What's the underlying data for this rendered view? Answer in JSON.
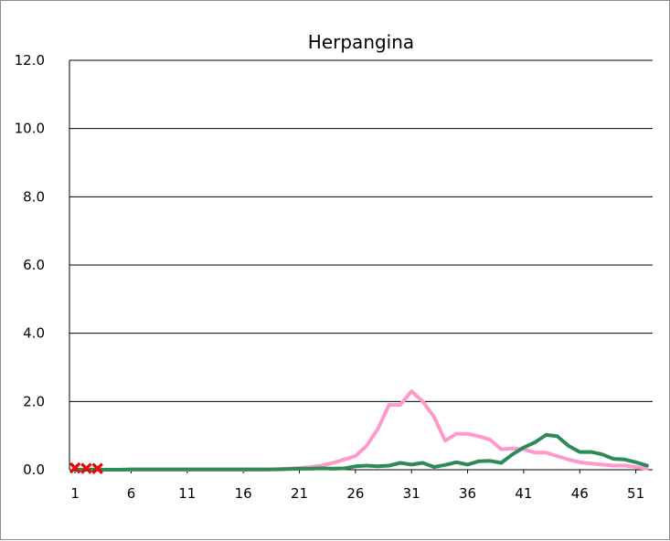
{
  "chart_data": {
    "type": "line",
    "title": "Herpangina",
    "xlabel": "",
    "ylabel": "",
    "ylim": [
      0,
      12
    ],
    "yticks": [
      "0.0",
      "2.0",
      "4.0",
      "6.0",
      "8.0",
      "10.0",
      "12.0"
    ],
    "yticks_values": [
      0,
      2,
      4,
      6,
      8,
      10,
      12
    ],
    "xlim": [
      1,
      53
    ],
    "xticks": [
      "1",
      "6",
      "11",
      "16",
      "21",
      "26",
      "31",
      "36",
      "41",
      "46",
      "51"
    ],
    "xticks_values": [
      1,
      6,
      11,
      16,
      21,
      26,
      31,
      36,
      41,
      46,
      51
    ],
    "grid": "horizontal",
    "legend": "none",
    "series": [
      {
        "color": "#ff99cc",
        "style": "line",
        "x": [
          1,
          2,
          3,
          4,
          5,
          6,
          7,
          8,
          9,
          10,
          11,
          12,
          13,
          14,
          15,
          16,
          17,
          18,
          19,
          20,
          21,
          22,
          23,
          24,
          25,
          26,
          27,
          28,
          29,
          30,
          31,
          32,
          33,
          34,
          35,
          36,
          37,
          38,
          39,
          40,
          41,
          42,
          43,
          44,
          45,
          46,
          47,
          48,
          49,
          50,
          51,
          52
        ],
        "values": [
          0.0,
          0.0,
          0.0,
          0.0,
          0.0,
          0.0,
          0.0,
          0.0,
          0.0,
          0.0,
          0.0,
          0.0,
          0.0,
          0.0,
          0.0,
          0.0,
          0.0,
          0.0,
          0.02,
          0.03,
          0.05,
          0.08,
          0.12,
          0.2,
          0.3,
          0.4,
          0.7,
          1.2,
          1.9,
          1.9,
          2.3,
          2.0,
          1.55,
          0.85,
          1.05,
          1.05,
          0.98,
          0.88,
          0.6,
          0.62,
          0.6,
          0.5,
          0.5,
          0.4,
          0.3,
          0.22,
          0.18,
          0.15,
          0.12,
          0.12,
          0.08,
          0.03
        ]
      },
      {
        "color": "#2e8b57",
        "style": "line",
        "x": [
          1,
          2,
          3,
          4,
          5,
          6,
          7,
          8,
          9,
          10,
          11,
          12,
          13,
          14,
          15,
          16,
          17,
          18,
          19,
          20,
          21,
          22,
          23,
          24,
          25,
          26,
          27,
          28,
          29,
          30,
          31,
          32,
          33,
          34,
          35,
          36,
          37,
          38,
          39,
          40,
          41,
          42,
          43,
          44,
          45,
          46,
          47,
          48,
          49,
          50,
          51,
          52
        ],
        "values": [
          0.0,
          0.0,
          0.0,
          0.0,
          0.0,
          0.01,
          0.01,
          0.01,
          0.01,
          0.01,
          0.01,
          0.01,
          0.01,
          0.01,
          0.01,
          0.01,
          0.01,
          0.01,
          0.01,
          0.02,
          0.03,
          0.03,
          0.04,
          0.03,
          0.04,
          0.1,
          0.12,
          0.1,
          0.12,
          0.2,
          0.15,
          0.2,
          0.08,
          0.14,
          0.22,
          0.15,
          0.25,
          0.26,
          0.2,
          0.45,
          0.65,
          0.8,
          1.02,
          0.98,
          0.7,
          0.52,
          0.52,
          0.45,
          0.32,
          0.3,
          0.22,
          0.12
        ]
      },
      {
        "color": "#1f2a78",
        "style": "marker-x",
        "x": [
          1,
          2,
          3
        ],
        "values": [
          0.05,
          0.04,
          0.04
        ]
      },
      {
        "color": "#ff0000",
        "style": "marker-x",
        "x": [
          1,
          2,
          3
        ],
        "values": [
          0.06,
          0.04,
          0.03
        ]
      }
    ]
  }
}
